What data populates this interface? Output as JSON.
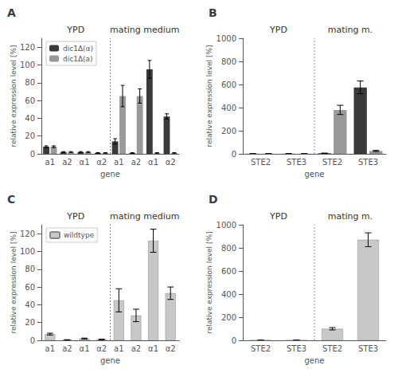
{
  "chart_data": [
    {
      "type": "bar",
      "title": "A",
      "annotations": [
        "YPD",
        "mating medium"
      ],
      "xlabel": "gene",
      "ylabel": "relative expression level [%]",
      "categories": [
        "a1",
        "a2",
        "α1",
        "α2",
        "a1",
        "a2",
        "α1",
        "α2"
      ],
      "series": [
        {
          "name": "dic1Δ(α)",
          "color": "#3a3a3a",
          "values": [
            8,
            2,
            2,
            1,
            14,
            1,
            95,
            42
          ],
          "errors": [
            1,
            0.5,
            0.5,
            0.3,
            3,
            0.3,
            10,
            3
          ]
        },
        {
          "name": "dic1Δ(a)",
          "color": "#999999",
          "values": [
            8,
            2,
            2,
            1,
            65,
            65,
            1,
            1
          ],
          "errors": [
            1,
            0.5,
            0.5,
            0.3,
            12,
            8,
            0.3,
            0.3
          ]
        }
      ],
      "ylim": [
        0,
        130
      ],
      "yticks": [
        0,
        20,
        40,
        60,
        80,
        100,
        120
      ],
      "grid": false,
      "legend": "upper left"
    },
    {
      "type": "bar",
      "title": "B",
      "annotations": [
        "YPD",
        "mating m."
      ],
      "xlabel": "gene",
      "ylabel": "relative expression level [%]",
      "categories": [
        "STE2",
        "STE3",
        "STE2",
        "STE3"
      ],
      "series": [
        {
          "color": "#3a3a3a",
          "values": [
            1,
            1,
            5,
            575
          ],
          "errors": [
            0.3,
            0.3,
            1,
            55
          ]
        },
        {
          "color": "#999999",
          "values": [
            1,
            1,
            380,
            25
          ],
          "errors": [
            0.3,
            0.3,
            40,
            5
          ]
        }
      ],
      "ylim": [
        0,
        1000
      ],
      "yticks": [
        0,
        200,
        400,
        600,
        800,
        1000
      ],
      "grid": false
    },
    {
      "type": "bar",
      "title": "C",
      "annotations": [
        "YPD",
        "mating medium"
      ],
      "xlabel": "gene",
      "ylabel": "relative expression level [%]",
      "categories": [
        "a1",
        "a2",
        "α1",
        "α2",
        "a1",
        "a2",
        "α1",
        "α2"
      ],
      "series": [
        {
          "name": "wildtype",
          "color": "#c8c8c8",
          "values": [
            7,
            0.5,
            2,
            1,
            45,
            28,
            112,
            53
          ],
          "errors": [
            1,
            0.2,
            0.5,
            0.3,
            13,
            7,
            13,
            7
          ]
        }
      ],
      "ylim": [
        0,
        130
      ],
      "yticks": [
        0,
        20,
        40,
        60,
        80,
        100,
        120
      ],
      "grid": false,
      "legend": "upper left"
    },
    {
      "type": "bar",
      "title": "D",
      "annotations": [
        "YPD",
        "mating m."
      ],
      "xlabel": "gene",
      "ylabel": "relative expression level [%]",
      "categories": [
        "STE2",
        "STE3",
        "STE2",
        "STE3"
      ],
      "series": [
        {
          "color": "#c8c8c8",
          "values": [
            1,
            1,
            100,
            870
          ],
          "errors": [
            0.3,
            0.3,
            10,
            60
          ]
        }
      ],
      "ylim": [
        0,
        1000
      ],
      "yticks": [
        0,
        200,
        400,
        600,
        800,
        1000
      ],
      "grid": false
    }
  ]
}
